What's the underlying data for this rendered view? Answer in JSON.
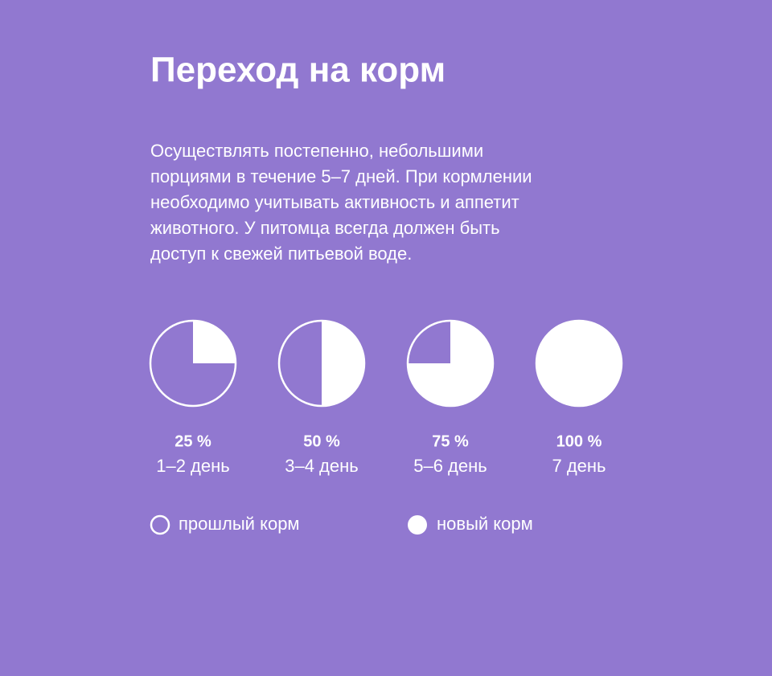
{
  "header": {
    "title": "Переход на корм"
  },
  "description": {
    "lines": [
      "Осуществлять постепенно, небольшими",
      "порциями в течение 5–7 дней. При кормлении",
      "необходимо учитывать активность и аппетит",
      "животного. У питомца всегда должен быть",
      "доступ к свежей питьевой воде."
    ]
  },
  "pies": {
    "values": [
      25,
      50,
      75,
      100
    ],
    "value_labels": [
      "25 %",
      "50 %",
      "75 %",
      "100 %"
    ],
    "days": [
      "1–2 день",
      "3–4 день",
      "5–6 день",
      "7 день"
    ]
  },
  "legend": {
    "old": "прошлый корм",
    "new": "новый корм"
  }
}
